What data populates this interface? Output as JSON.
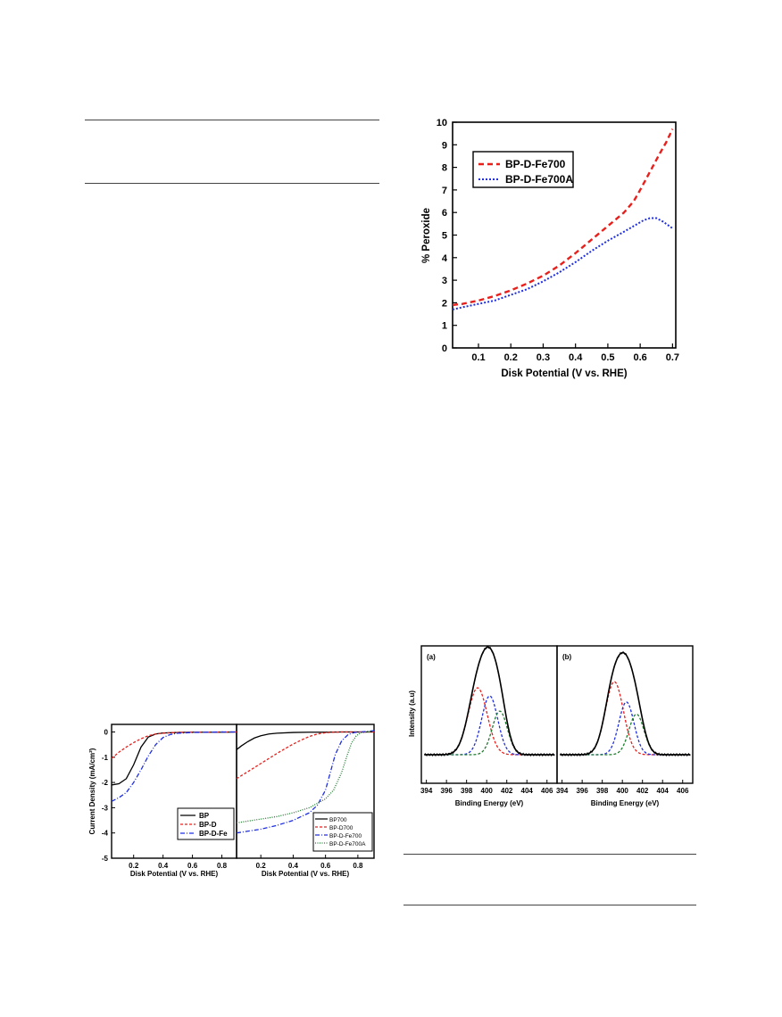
{
  "peroxide_chart": {
    "ylabel": "% Peroxide",
    "xlabel": "Disk Potential (V vs. RHE)",
    "legend": [
      "BP-D-Fe700",
      "BP-D-Fe700A"
    ]
  },
  "lsv_chart": {
    "ylabel": "Current Density (mA/cm²)",
    "left_xlabel": "Disk Potential (V vs. RHE)",
    "right_xlabel": "Disk Potential (V vs. RHE)",
    "left_legend": [
      "BP",
      "BP-D",
      "BP-D-Fe"
    ],
    "right_legend": [
      "BP700",
      "BP-D700",
      "BP-D-Fe700",
      "BP-D-Fe700A"
    ]
  },
  "xps_chart": {
    "ylabel": "Intensity (a.u)",
    "panel_a_label": "(a)",
    "panel_b_label": "(b)",
    "xlabel_a": "Binding Energy (eV)",
    "xlabel_b": "Binding Energy (eV)"
  },
  "colors": {
    "red": "#e8201c",
    "blue": "#1f2fe0",
    "green": "#1e7a2e",
    "black": "#000000"
  },
  "chart_data": [
    {
      "type": "line",
      "ylabel": "% Peroxide",
      "xlabel": "Disk Potential (V vs. RHE)",
      "xlim": [
        0.02,
        0.71
      ],
      "ylim": [
        0,
        10
      ],
      "xticks": [
        0.1,
        0.2,
        0.3,
        0.4,
        0.5,
        0.6,
        0.7
      ],
      "yticks": [
        0,
        1,
        2,
        3,
        4,
        5,
        6,
        7,
        8,
        9,
        10
      ],
      "legend_position": "top-left",
      "series": [
        {
          "name": "BP-D-Fe700",
          "color": "#e8201c",
          "dash": "dashed",
          "x": [
            0.02,
            0.05,
            0.1,
            0.15,
            0.2,
            0.25,
            0.3,
            0.35,
            0.4,
            0.45,
            0.5,
            0.55,
            0.58,
            0.6,
            0.63,
            0.66,
            0.68,
            0.7
          ],
          "y": [
            1.9,
            1.95,
            2.1,
            2.3,
            2.55,
            2.85,
            3.2,
            3.65,
            4.2,
            4.8,
            5.4,
            6.0,
            6.5,
            7.0,
            7.8,
            8.6,
            9.1,
            9.7
          ]
        },
        {
          "name": "BP-D-Fe700A",
          "color": "#1f2fe0",
          "dash": "dotted",
          "x": [
            0.02,
            0.05,
            0.1,
            0.15,
            0.2,
            0.25,
            0.3,
            0.35,
            0.4,
            0.45,
            0.5,
            0.55,
            0.58,
            0.61,
            0.63,
            0.65,
            0.67,
            0.7
          ],
          "y": [
            1.7,
            1.8,
            1.95,
            2.1,
            2.35,
            2.6,
            2.95,
            3.35,
            3.8,
            4.3,
            4.75,
            5.15,
            5.4,
            5.65,
            5.75,
            5.75,
            5.6,
            5.3
          ]
        }
      ]
    },
    {
      "type": "line",
      "ylabel": "Current Density (mA/cm²)",
      "xlabel": "Disk Potential (V vs. RHE)",
      "xlim": [
        0.05,
        0.9
      ],
      "ylim": [
        -5,
        0.3
      ],
      "xticks": [
        0.2,
        0.4,
        0.6,
        0.8
      ],
      "yticks": [
        0,
        -1,
        -2,
        -3,
        -4,
        -5
      ],
      "legend_position": "bottom-right",
      "series": [
        {
          "name": "BP",
          "color": "#000000",
          "dash": "solid",
          "x": [
            0.05,
            0.1,
            0.15,
            0.2,
            0.25,
            0.3,
            0.35,
            0.4,
            0.5,
            0.6,
            0.7,
            0.8,
            0.9
          ],
          "y": [
            -2.1,
            -2.05,
            -1.85,
            -1.3,
            -0.6,
            -0.2,
            -0.08,
            -0.04,
            -0.02,
            -0.01,
            -0.01,
            -0.01,
            0
          ]
        },
        {
          "name": "BP-D",
          "color": "#e8201c",
          "dash": "dashed",
          "x": [
            0.05,
            0.1,
            0.15,
            0.2,
            0.25,
            0.3,
            0.35,
            0.4,
            0.45,
            0.5,
            0.6,
            0.7,
            0.8,
            0.9
          ],
          "y": [
            -1.05,
            -0.8,
            -0.6,
            -0.42,
            -0.27,
            -0.15,
            -0.08,
            -0.05,
            -0.03,
            -0.02,
            -0.01,
            -0.01,
            0,
            0
          ]
        },
        {
          "name": "BP-D-Fe",
          "color": "#1f2fe0",
          "dash": "dashdot",
          "x": [
            0.05,
            0.1,
            0.15,
            0.2,
            0.25,
            0.3,
            0.35,
            0.4,
            0.45,
            0.5,
            0.6,
            0.7,
            0.8,
            0.9
          ],
          "y": [
            -2.75,
            -2.6,
            -2.4,
            -2.0,
            -1.5,
            -0.95,
            -0.5,
            -0.22,
            -0.1,
            -0.05,
            -0.02,
            -0.01,
            0,
            0
          ]
        }
      ]
    },
    {
      "type": "line",
      "ylabel": "",
      "xlabel": "Disk Potential (V vs. RHE)",
      "xlim": [
        0.05,
        0.9
      ],
      "ylim": [
        -5,
        0.3
      ],
      "xticks": [
        0.2,
        0.4,
        0.6,
        0.8
      ],
      "legend_position": "bottom-right",
      "series": [
        {
          "name": "BP700",
          "color": "#000000",
          "dash": "solid",
          "x": [
            0.05,
            0.08,
            0.12,
            0.16,
            0.2,
            0.25,
            0.3,
            0.4,
            0.5,
            0.6,
            0.7,
            0.8,
            0.9
          ],
          "y": [
            -0.7,
            -0.55,
            -0.38,
            -0.24,
            -0.15,
            -0.08,
            -0.05,
            -0.02,
            -0.01,
            -0.01,
            0,
            0,
            0
          ]
        },
        {
          "name": "BP-D700",
          "color": "#e8201c",
          "dash": "dashed",
          "x": [
            0.05,
            0.1,
            0.15,
            0.2,
            0.25,
            0.3,
            0.35,
            0.4,
            0.45,
            0.5,
            0.55,
            0.6,
            0.65,
            0.7,
            0.8,
            0.9
          ],
          "y": [
            -1.85,
            -1.65,
            -1.45,
            -1.25,
            -1.05,
            -0.85,
            -0.66,
            -0.48,
            -0.32,
            -0.18,
            -0.08,
            -0.03,
            -0.01,
            0,
            0,
            0
          ]
        },
        {
          "name": "BP-D-Fe700",
          "color": "#1f2fe0",
          "dash": "dashdot",
          "x": [
            0.05,
            0.1,
            0.2,
            0.3,
            0.4,
            0.5,
            0.55,
            0.6,
            0.63,
            0.66,
            0.7,
            0.74,
            0.78,
            0.82,
            0.9
          ],
          "y": [
            -4.0,
            -3.95,
            -3.85,
            -3.7,
            -3.5,
            -3.2,
            -2.9,
            -2.3,
            -1.6,
            -0.9,
            -0.35,
            -0.1,
            -0.02,
            0,
            0.05
          ]
        },
        {
          "name": "BP-D-Fe700A",
          "color": "#1e7a2e",
          "dash": "dotted",
          "x": [
            0.05,
            0.1,
            0.2,
            0.3,
            0.4,
            0.5,
            0.6,
            0.65,
            0.7,
            0.73,
            0.76,
            0.79,
            0.82,
            0.86,
            0.9
          ],
          "y": [
            -3.6,
            -3.55,
            -3.45,
            -3.35,
            -3.2,
            -3.0,
            -2.65,
            -2.3,
            -1.6,
            -1.0,
            -0.45,
            -0.15,
            -0.03,
            0,
            0.05
          ]
        }
      ]
    },
    {
      "type": "line",
      "panel": "(a)",
      "xlabel": "Binding Energy (eV)",
      "ylabel": "Intensity (a.u)",
      "xlim": [
        393.5,
        407
      ],
      "xticks": [
        394,
        396,
        398,
        400,
        402,
        404,
        406
      ],
      "series": [
        {
          "shape": "gaussian",
          "center": 399.1,
          "height": 0.66,
          "width": 0.95,
          "color": "#e8201c",
          "dash": "dashed"
        },
        {
          "shape": "gaussian",
          "center": 400.3,
          "height": 0.58,
          "width": 0.8,
          "color": "#1f2fe0",
          "dash": "dashed"
        },
        {
          "shape": "gaussian",
          "center": 401.3,
          "height": 0.43,
          "width": 0.75,
          "color": "#1e7a2e",
          "dash": "dashed"
        },
        {
          "shape": "envelope",
          "color": "#000000",
          "dash": "solid"
        }
      ]
    },
    {
      "type": "line",
      "panel": "(b)",
      "xlabel": "Binding Energy (eV)",
      "xlim": [
        393.5,
        407
      ],
      "xticks": [
        394,
        396,
        398,
        400,
        402,
        404,
        406
      ],
      "series": [
        {
          "shape": "gaussian",
          "center": 399.2,
          "height": 0.72,
          "width": 0.9,
          "color": "#e8201c",
          "dash": "dashed"
        },
        {
          "shape": "gaussian",
          "center": 400.4,
          "height": 0.52,
          "width": 0.75,
          "color": "#1f2fe0",
          "dash": "dashed"
        },
        {
          "shape": "gaussian",
          "center": 401.4,
          "height": 0.4,
          "width": 0.75,
          "color": "#1e7a2e",
          "dash": "dashed"
        },
        {
          "shape": "envelope",
          "color": "#000000",
          "dash": "solid"
        }
      ]
    }
  ]
}
